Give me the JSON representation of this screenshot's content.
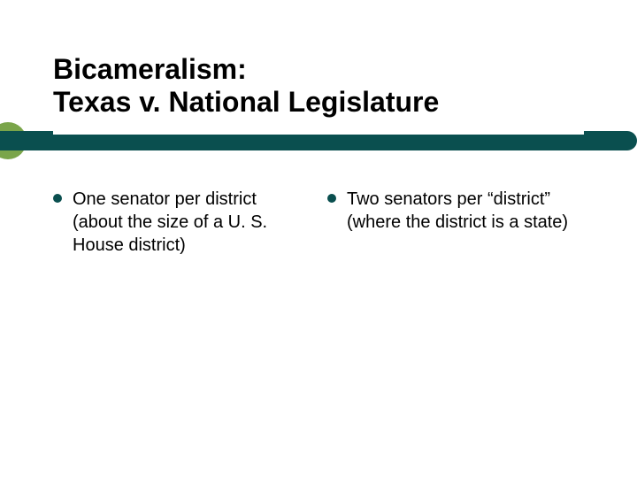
{
  "slide": {
    "title_line1": "Bicameralism:",
    "title_line2": "Texas v. National Legislature",
    "accent_color": "#0a4f4f",
    "circle_color": "#7aa54a",
    "bullet_color": "#0a4f4f",
    "columns": [
      {
        "text": "One senator per district (about the size of a U. S. House district)"
      },
      {
        "text": "Two senators per “district” (where the district is a state)"
      }
    ]
  }
}
